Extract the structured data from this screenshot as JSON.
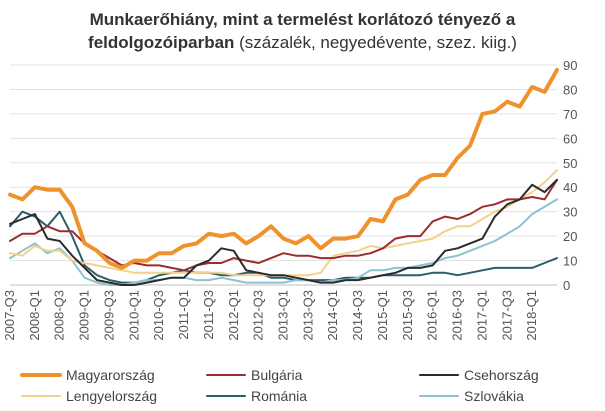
{
  "title": {
    "line1_bold": "Munkaerőhiány, mint a termelést korlátozó tényező  a",
    "line2_bold": "feldolgozóiparban",
    "line2_normal": " (százalék, negyedévente, szez. kiig.)"
  },
  "chart_data": {
    "type": "line",
    "title": "Munkaerőhiány, mint a termelést korlátozó tényező  a feldolgozóiparban (százalék, negyedévente, szez. kiig.)",
    "x_labels": [
      "2007-Q3",
      "2008-Q1",
      "2008-Q3",
      "2009-Q1",
      "2009-Q3",
      "2010-Q1",
      "2010-Q3",
      "2011-Q1",
      "2011-Q3",
      "2012-Q1",
      "2012-Q3",
      "2013-Q1",
      "2013-Q3",
      "2014-Q1",
      "2014-Q3",
      "2015-Q1",
      "2015-Q3",
      "2016-Q1",
      "2016-Q3",
      "2017-Q1",
      "2017-Q3",
      "2018-Q1"
    ],
    "ylim": [
      0,
      90
    ],
    "y_ticks": [
      0,
      10,
      20,
      30,
      40,
      50,
      60,
      70,
      80,
      90
    ],
    "y_axis_side": "right",
    "grid": true,
    "legend_position": "bottom",
    "series": [
      {
        "name": "Magyarország",
        "color": "#f0922c",
        "width": 4,
        "values": [
          37,
          35,
          40,
          39,
          39,
          32,
          17,
          14,
          9,
          7,
          10,
          10,
          13,
          13,
          16,
          17,
          21,
          20,
          21,
          17,
          20,
          24,
          19,
          17,
          20,
          15,
          19,
          19,
          20,
          27,
          26,
          35,
          37,
          43,
          45,
          45,
          52,
          57,
          70,
          71,
          75,
          73,
          81,
          79,
          88
        ]
      },
      {
        "name": "Bulgária",
        "color": "#9b2d2a",
        "width": 2,
        "values": [
          18,
          21,
          21,
          24,
          22,
          22,
          17,
          14,
          11,
          8,
          9,
          8,
          8,
          7,
          6,
          8,
          9,
          9,
          11,
          10,
          9,
          11,
          13,
          12,
          12,
          11,
          11,
          12,
          12,
          13,
          15,
          19,
          20,
          20,
          26,
          28,
          27,
          29,
          32,
          33,
          35,
          35,
          36,
          35,
          43
        ]
      },
      {
        "name": "Csehország",
        "color": "#2b2b2b",
        "width": 2,
        "values": [
          25,
          27,
          29,
          19,
          18,
          12,
          7,
          2,
          1,
          0,
          0,
          1,
          2,
          3,
          3,
          8,
          10,
          15,
          14,
          6,
          5,
          4,
          4,
          3,
          2,
          1,
          1,
          2,
          2,
          3,
          4,
          5,
          7,
          7,
          8,
          14,
          15,
          17,
          19,
          28,
          33,
          35,
          41,
          38,
          43
        ]
      },
      {
        "name": "Lengyelország",
        "color": "#f5d08a",
        "width": 2,
        "values": [
          13,
          12,
          16,
          14,
          14,
          10,
          9,
          8,
          7,
          6,
          5,
          5,
          5,
          5,
          5,
          5,
          5,
          5,
          4,
          4,
          4,
          4,
          4,
          4,
          4,
          5,
          12,
          13,
          14,
          16,
          15,
          16,
          17,
          18,
          19,
          22,
          24,
          24,
          27,
          30,
          32,
          35,
          38,
          42,
          47
        ]
      },
      {
        "name": "Románia",
        "color": "#2a5e6c",
        "width": 2,
        "values": [
          24,
          30,
          28,
          24,
          30,
          20,
          8,
          4,
          2,
          1,
          1,
          2,
          4,
          5,
          6,
          5,
          5,
          4,
          4,
          5,
          5,
          3,
          3,
          2,
          2,
          2,
          2,
          3,
          3,
          3,
          4,
          4,
          4,
          4,
          5,
          5,
          4,
          5,
          6,
          7,
          7,
          7,
          7,
          9,
          11
        ]
      },
      {
        "name": "Szlovákia",
        "color": "#8bc3cf",
        "width": 2,
        "values": [
          11,
          14,
          17,
          13,
          15,
          10,
          3,
          1,
          0,
          0,
          1,
          2,
          2,
          3,
          3,
          2,
          2,
          3,
          2,
          1,
          1,
          1,
          1,
          2,
          2,
          1,
          2,
          2,
          3,
          6,
          6,
          7,
          7,
          8,
          9,
          11,
          12,
          14,
          16,
          18,
          21,
          24,
          29,
          32,
          35
        ]
      }
    ]
  },
  "legend": [
    {
      "label": "Magyarország"
    },
    {
      "label": "Bulgária"
    },
    {
      "label": "Csehország"
    },
    {
      "label": "Lengyelország"
    },
    {
      "label": "Románia"
    },
    {
      "label": "Szlovákia"
    }
  ]
}
